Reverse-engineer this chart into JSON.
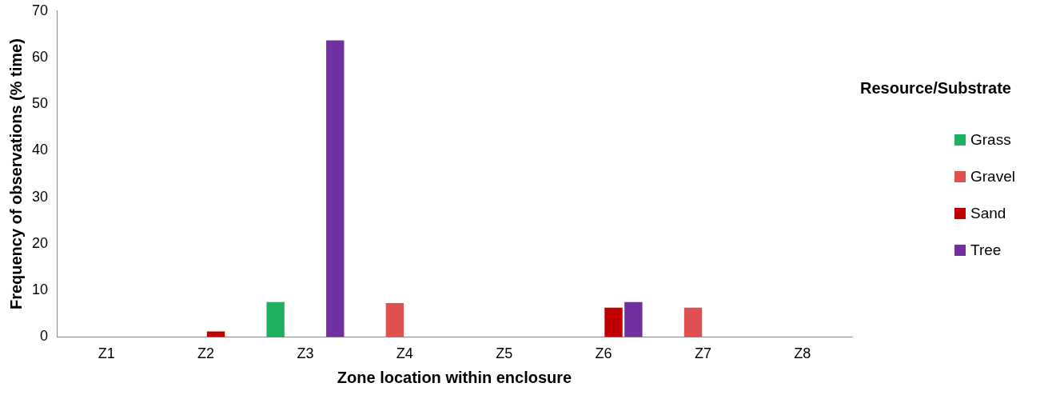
{
  "chart_data": {
    "type": "bar",
    "xlabel": "Zone location within enclosure",
    "ylabel": "Frequency of observations (% time)",
    "legend_title": "Resource/Substrate",
    "categories": [
      "Z1",
      "Z2",
      "Z3",
      "Z4",
      "Z5",
      "Z6",
      "Z7",
      "Z8"
    ],
    "series": [
      {
        "name": "Grass",
        "color": "#20b060",
        "values": [
          0,
          0,
          7.5,
          0,
          0,
          0,
          0,
          0
        ]
      },
      {
        "name": "Gravel",
        "color": "#e05050",
        "values": [
          0,
          0,
          0,
          7.3,
          0,
          0,
          6.3,
          0
        ]
      },
      {
        "name": "Sand",
        "color": "#c00000",
        "values": [
          0,
          1.2,
          0,
          0,
          0,
          6.3,
          0,
          0
        ]
      },
      {
        "name": "Tree",
        "color": "#7030a0",
        "values": [
          0,
          0,
          63.7,
          0,
          0,
          7.5,
          0,
          0
        ]
      }
    ],
    "ylim": [
      0,
      70
    ],
    "yticks": [
      0,
      10,
      20,
      30,
      40,
      50,
      60,
      70
    ],
    "grid": false,
    "legend": "right"
  }
}
